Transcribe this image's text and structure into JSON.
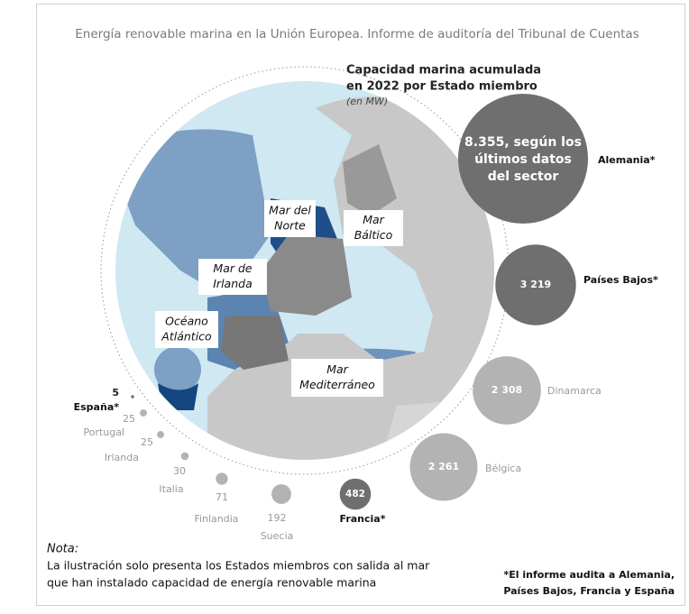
{
  "chart_data": {
    "type": "bubble",
    "title": "Energía renovable marina en la Unión Europea. Informe de auditoría del Tribunal de Cuentas",
    "heading": [
      "Capacidad marina acumulada",
      "en 2022 por Estado miembro"
    ],
    "unit": "(en MW)",
    "categories": [
      "España*",
      "Portugal",
      "Irlanda",
      "Italia",
      "Finlandia",
      "Suecia",
      "Francia*",
      "Bélgica",
      "Dinamarca",
      "Países Bajos*",
      "Alemania*"
    ],
    "values": [
      5,
      25,
      25,
      30,
      71,
      192,
      482,
      2261,
      2308,
      3219,
      8355
    ],
    "value_labels": [
      "5",
      "25",
      "25",
      "30",
      "71",
      "192",
      "482",
      "2 261",
      "2 308",
      "3 219",
      "8.355, según los últimos datos del sector"
    ],
    "colors": [
      "#6f6f6f",
      "#b3b3b3",
      "#b3b3b3",
      "#b3b3b3",
      "#b3b3b3",
      "#b3b3b3",
      "#6f6f6f",
      "#b3b3b3",
      "#b3b3b3",
      "#6f6f6f",
      "#6f6f6f"
    ],
    "regions": [
      [
        "Mar del",
        "Norte"
      ],
      [
        "Mar",
        "Báltico"
      ],
      [
        "Mar de",
        "Irlanda"
      ],
      [
        "Océano",
        "Atlántico"
      ],
      [
        "Mar",
        "Mediterráneo"
      ]
    ],
    "note_title": "Nota:",
    "note": [
      "La ilustración solo presenta los Estados miembros con salida al mar",
      "que han instalado capacidad de energía renovable marina"
    ],
    "footnote": [
      "*El informe audita a Alemania,",
      "Países Bajos, Francia y España"
    ]
  }
}
